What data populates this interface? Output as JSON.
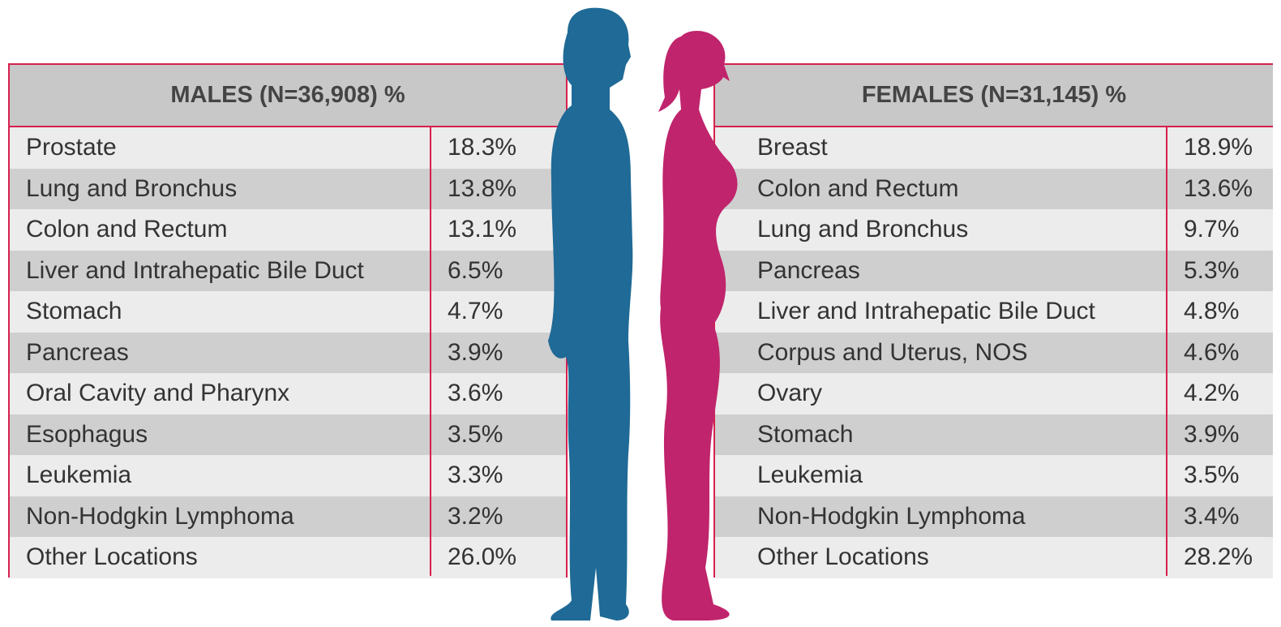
{
  "males": {
    "header": "MALES (N=36,908) %",
    "rows": [
      [
        "Prostate",
        "18.3%"
      ],
      [
        "Lung and Bronchus",
        "13.8%"
      ],
      [
        "Colon and Rectum",
        "13.1%"
      ],
      [
        "Liver and Intrahepatic Bile Duct",
        "6.5%"
      ],
      [
        "Stomach",
        "4.7%"
      ],
      [
        "Pancreas",
        "3.9%"
      ],
      [
        "Oral Cavity and Pharynx",
        "3.6%"
      ],
      [
        "Esophagus",
        "3.5%"
      ],
      [
        "Leukemia",
        "3.3%"
      ],
      [
        "Non-Hodgkin Lymphoma",
        "3.2%"
      ],
      [
        "Other Locations",
        "26.0%"
      ]
    ]
  },
  "females": {
    "header": "FEMALES (N=31,145) %",
    "rows": [
      [
        "Breast",
        "18.9%"
      ],
      [
        "Colon and Rectum",
        "13.6%"
      ],
      [
        "Lung and Bronchus",
        "9.7%"
      ],
      [
        "Pancreas",
        "5.3%"
      ],
      [
        "Liver and Intrahepatic Bile Duct",
        "4.8%"
      ],
      [
        "Corpus and Uterus, NOS",
        "4.6%"
      ],
      [
        "Ovary",
        "4.2%"
      ],
      [
        "Stomach",
        "3.9%"
      ],
      [
        "Leukemia",
        "3.5%"
      ],
      [
        "Non-Hodgkin Lymphoma",
        "3.4%"
      ],
      [
        "Other Locations",
        "28.2%"
      ]
    ]
  }
}
